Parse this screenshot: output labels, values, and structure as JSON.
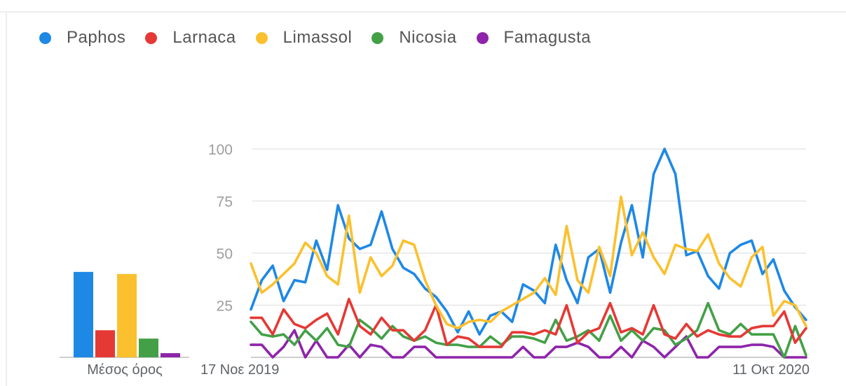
{
  "chart_data": {
    "type": "line",
    "legend_position": "top-left",
    "grid": true,
    "ylim": [
      0,
      100
    ],
    "yticks": [
      25,
      50,
      75,
      100
    ],
    "x_label_start": "17 Νοε 2019",
    "x_label_end": "11 Οκτ 2020",
    "average_label": "Μέσος όρος",
    "series": [
      {
        "name": "Paphos",
        "color": "#1e88e5",
        "average": 41,
        "values": [
          23,
          37,
          44,
          27,
          37,
          36,
          56,
          42,
          73,
          57,
          52,
          54,
          70,
          52,
          43,
          40,
          33,
          29,
          22,
          12,
          22,
          11,
          20,
          22,
          17,
          35,
          32,
          26,
          54,
          37,
          26,
          48,
          52,
          31,
          55,
          73,
          48,
          88,
          100,
          88,
          49,
          51,
          39,
          33,
          50,
          54,
          56,
          40,
          47,
          32,
          24,
          18
        ]
      },
      {
        "name": "Larnaca",
        "color": "#e53935",
        "average": 13,
        "values": [
          19,
          19,
          11,
          23,
          16,
          14,
          18,
          21,
          11,
          28,
          15,
          11,
          19,
          13,
          13,
          8,
          13,
          25,
          6,
          10,
          9,
          5,
          5,
          5,
          12,
          12,
          11,
          13,
          11,
          25,
          7,
          12,
          14,
          26,
          12,
          14,
          11,
          25,
          11,
          9,
          16,
          10,
          13,
          11,
          10,
          10,
          14,
          15,
          15,
          22,
          7,
          14
        ]
      },
      {
        "name": "Limassol",
        "color": "#fbc02d",
        "average": 40,
        "values": [
          45,
          31,
          35,
          40,
          45,
          55,
          50,
          39,
          35,
          68,
          31,
          48,
          39,
          44,
          56,
          54,
          37,
          25,
          16,
          14,
          17,
          18,
          17,
          22,
          25,
          28,
          31,
          38,
          30,
          63,
          37,
          31,
          53,
          39,
          77,
          49,
          60,
          48,
          40,
          54,
          52,
          51,
          59,
          45,
          38,
          34,
          48,
          53,
          20,
          27,
          25,
          15
        ]
      },
      {
        "name": "Nicosia",
        "color": "#43a047",
        "average": 9,
        "values": [
          17,
          11,
          10,
          11,
          6,
          13,
          8,
          14,
          6,
          5,
          18,
          14,
          9,
          15,
          10,
          8,
          10,
          7,
          6,
          6,
          5,
          5,
          10,
          6,
          10,
          10,
          9,
          7,
          18,
          8,
          10,
          13,
          8,
          20,
          8,
          13,
          8,
          14,
          13,
          6,
          9,
          13,
          26,
          13,
          11,
          16,
          11,
          11,
          11,
          0,
          15,
          1
        ]
      },
      {
        "name": "Famagusta",
        "color": "#8e24aa",
        "average": 2,
        "values": [
          6,
          6,
          0,
          5,
          13,
          0,
          8,
          0,
          0,
          6,
          0,
          6,
          5,
          0,
          0,
          5,
          5,
          0,
          0,
          0,
          0,
          0,
          0,
          0,
          0,
          5,
          0,
          0,
          5,
          5,
          7,
          5,
          0,
          0,
          5,
          0,
          8,
          5,
          0,
          5,
          10,
          0,
          0,
          5,
          5,
          5,
          6,
          6,
          5,
          0,
          0,
          0
        ]
      }
    ]
  }
}
